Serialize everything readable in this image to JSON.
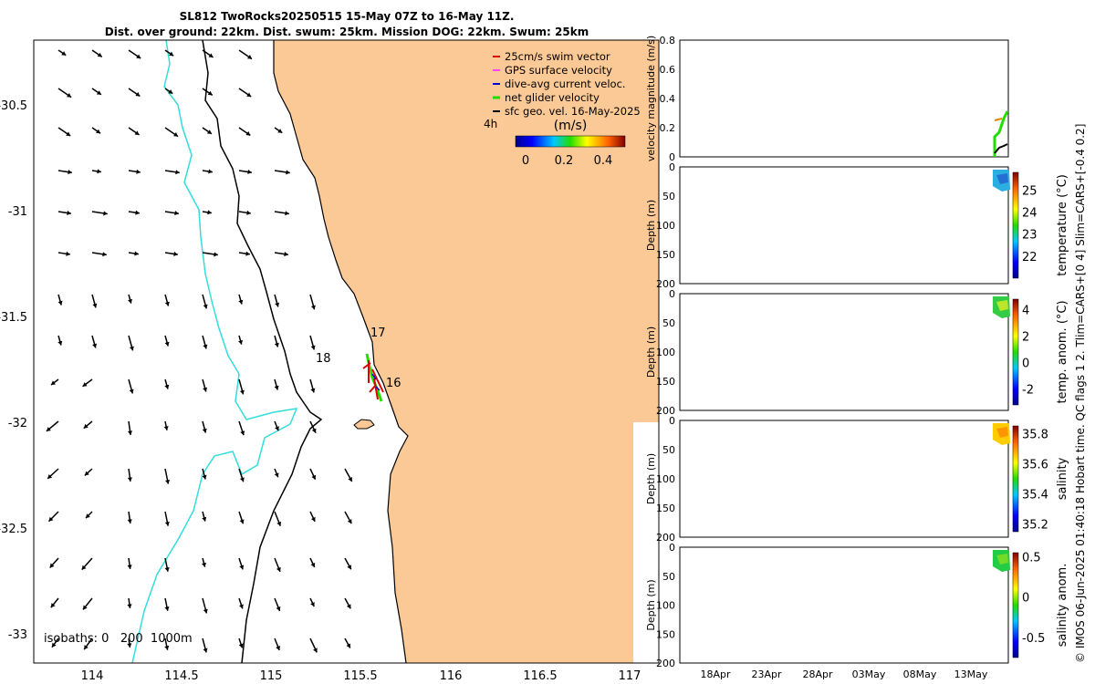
{
  "title_line1": "SL812 TwoRocks20250515 15-May 07Z to 16-May 11Z.",
  "title_line2": "Dist. over ground: 22km. Dist. swum: 25km. Mission DOG: 22km. Swum: 25km",
  "copyright": "© IMOS 06-Jun-2025 01:40:18 Hobart time. QC flags 1  2. Tlim=CARS+[0 4] Slim=CARS+[-0.4 0.2]",
  "colors": {
    "land": "#fbc996",
    "coast": "#000000",
    "isobath200": "#000000",
    "isobath1000": "#33dddd",
    "swim": "#dd0000",
    "gps": "#ff44ff",
    "dive": "#0000cc",
    "net": "#22dd00",
    "sfc": "#000000"
  },
  "map": {
    "x_ticks": [
      "114",
      "114.5",
      "115",
      "115.5",
      "116",
      "116.5",
      "117"
    ],
    "y_ticks": [
      "-30.5",
      "-31",
      "-31.5",
      "-32",
      "-32.5",
      "-33"
    ],
    "isobaths_label": "isobaths: 0   200  1000m",
    "time_labels": [
      "16",
      "17",
      "18"
    ],
    "hour_label": "4h",
    "legend": [
      {
        "label": "25cm/s swim vector",
        "color": "#dd0000"
      },
      {
        "label": "GPS surface velocity",
        "color": "#ff44ff"
      },
      {
        "label": "dive-avg current veloc.",
        "color": "#0000cc"
      },
      {
        "label": "net glider velocity",
        "color": "#22dd00"
      },
      {
        "label": "sfc geo. vel. 16-May-2025",
        "color": "#000000"
      }
    ],
    "colorbar": {
      "title": "(m/s)",
      "ticks": [
        "0",
        "0.2",
        "0.4"
      ]
    }
  },
  "chart_data": [
    {
      "type": "line",
      "name": "velocity magnitude",
      "ylabel": "velocity magnitude (m/s)",
      "ylim": [
        0,
        0.8
      ],
      "yticks": [
        "0",
        "0.2",
        "0.4",
        "0.6",
        "0.8"
      ]
    },
    {
      "type": "heatmap",
      "name": "temperature",
      "ylabel": "Depth (m)",
      "clabel": "temperature (°C)",
      "yticks": [
        "0",
        "50",
        "100",
        "150",
        "200"
      ],
      "cticks": [
        "25",
        "24",
        "23",
        "22"
      ],
      "clim": [
        21,
        25.8
      ]
    },
    {
      "type": "heatmap",
      "name": "temp. anom.",
      "ylabel": "Depth (m)",
      "clabel": "temp. anom. (°C)",
      "yticks": [
        "0",
        "50",
        "100",
        "150",
        "200"
      ],
      "cticks": [
        "4",
        "2",
        "0",
        "-2"
      ],
      "clim": [
        -3.2,
        4.8
      ]
    },
    {
      "type": "heatmap",
      "name": "salinity",
      "ylabel": "Depth (m)",
      "clabel": "salinity",
      "yticks": [
        "0",
        "50",
        "100",
        "150",
        "200"
      ],
      "cticks": [
        "35.8",
        "35.6",
        "35.4",
        "35.2"
      ],
      "clim": [
        35.15,
        35.85
      ]
    },
    {
      "type": "heatmap",
      "name": "salinity anom.",
      "ylabel": "Depth (m)",
      "clabel": "salinity anom.",
      "yticks": [
        "0",
        "50",
        "100",
        "150",
        "200"
      ],
      "cticks": [
        "0.5",
        "0",
        "-0.5"
      ],
      "clim": [
        -0.75,
        0.55
      ]
    }
  ],
  "time_axis": [
    "18Apr",
    "23Apr",
    "28Apr",
    "03May",
    "08May",
    "13May"
  ]
}
